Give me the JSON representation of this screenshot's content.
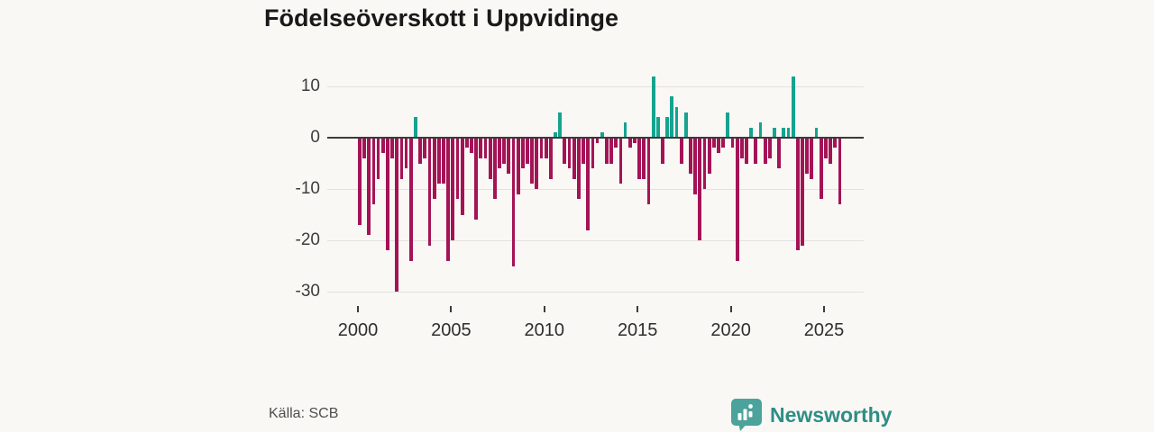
{
  "title": "Födelseöverskott i Uppvidinge",
  "source": {
    "label": "Källa: SCB"
  },
  "logo": {
    "text": "Newsworthy"
  },
  "colors": {
    "positive": "#16a38f",
    "negative": "#a41356",
    "zero_line": "#3b3b3b",
    "gridline": "#e3e1dd",
    "background": "#faf8f4",
    "logo_teal": "#4ba39b"
  },
  "chart_data": {
    "type": "bar",
    "title": "Födelseöverskott i Uppvidinge",
    "xlabel": "",
    "ylabel": "",
    "period": "quarterly",
    "start": "2000 Q1",
    "end": "2025 Q4",
    "ylim": [
      -32,
      13
    ],
    "grid": true,
    "yticks": [
      10,
      0,
      -10,
      -20,
      -30
    ],
    "xticks": [
      2000,
      2005,
      2010,
      2015,
      2020,
      2025
    ],
    "values": [
      -17,
      -4,
      -19,
      -13,
      -8,
      -3,
      -22,
      -4,
      -30,
      -8,
      -6,
      -24,
      4,
      -5,
      -4,
      -21,
      -12,
      -9,
      -9,
      -24,
      -20,
      -12,
      -15,
      -2,
      -3,
      -16,
      -4,
      -4,
      -8,
      -12,
      -6,
      -5,
      -7,
      -25,
      -11,
      -6,
      -5,
      -9,
      -10,
      -4,
      -4,
      -8,
      1,
      5,
      -5,
      -6,
      -8,
      -12,
      -5,
      -18,
      -6,
      -1,
      1,
      -5,
      -5,
      -2,
      -9,
      3,
      -2,
      -1,
      -8,
      -8,
      -13,
      12,
      4,
      -5,
      4,
      8,
      6,
      -5,
      5,
      -7,
      -11,
      -20,
      -10,
      -7,
      -2,
      -3,
      -2,
      5,
      -2,
      -24,
      -4,
      -5,
      2,
      -5,
      3,
      -5,
      -4,
      2,
      -6,
      2,
      2,
      12,
      -22,
      -21,
      -7,
      -8,
      2,
      -12,
      -4,
      -5,
      -2,
      -13
    ]
  }
}
